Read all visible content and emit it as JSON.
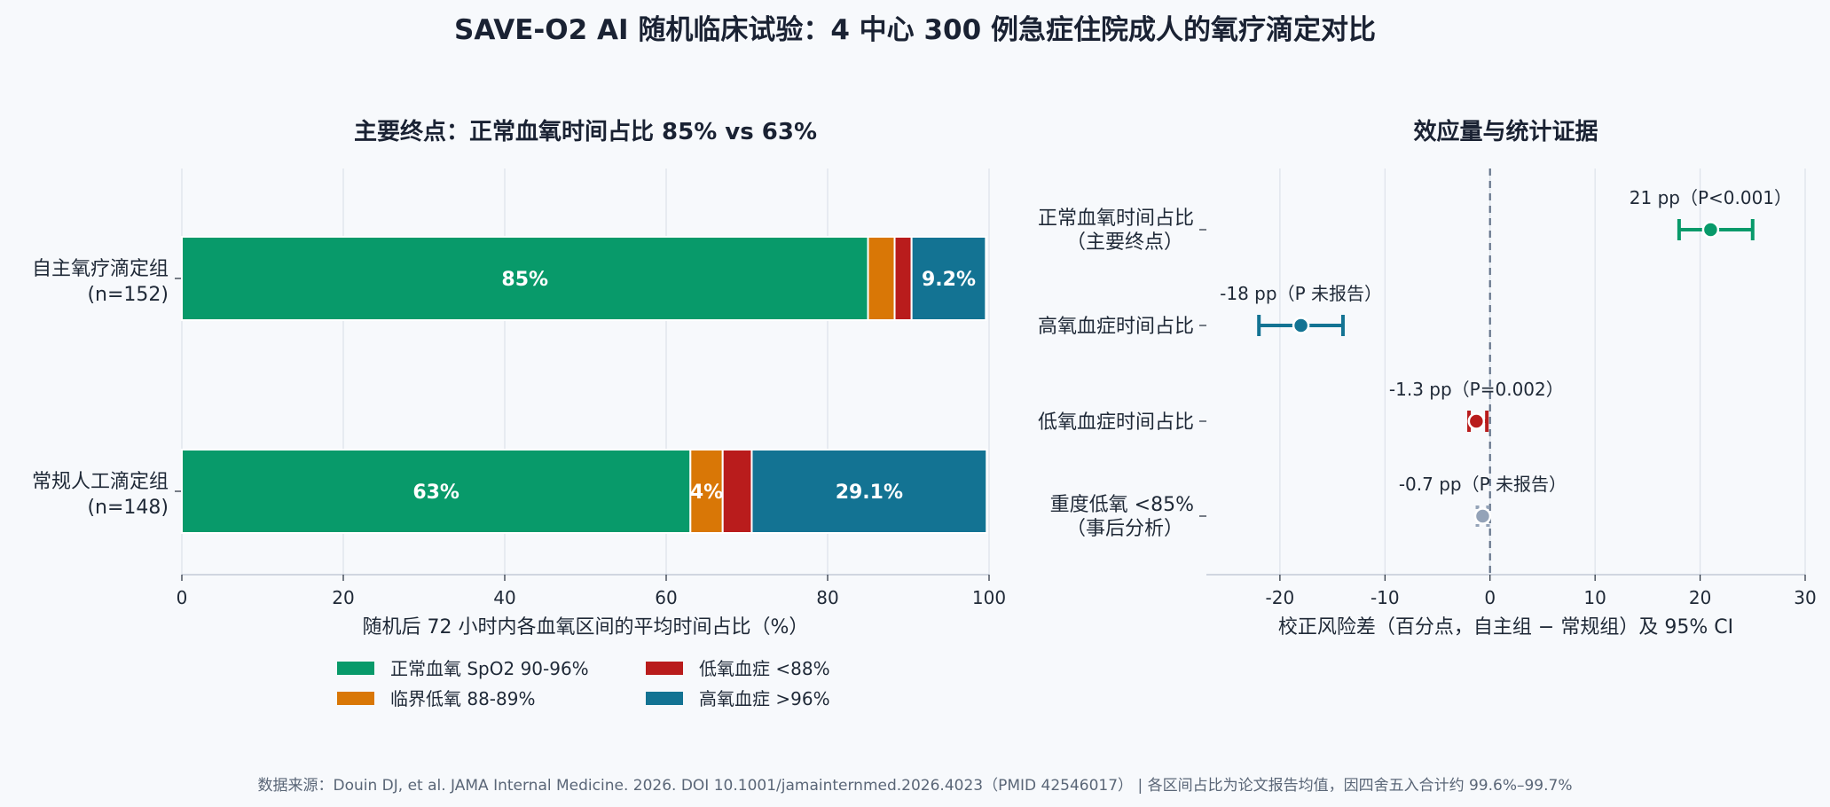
{
  "title": "SAVE-O2 AI 随机临床试验：4 中心 300 例急症住院成人的氧疗滴定对比",
  "chart_data": [
    {
      "type": "bar",
      "orientation": "horizontal",
      "stacked": true,
      "title": "主要终点：正常血氧时间占比 85% vs 63%",
      "categories": [
        {
          "line1": "自主氧疗滴定组",
          "line2": "(n=152)"
        },
        {
          "line1": "常规人工滴定组",
          "line2": "(n=148)"
        }
      ],
      "series": [
        {
          "name": "正常血氧 SpO2 90-96%",
          "color": "#089a6a",
          "values": [
            85,
            63
          ],
          "labels": [
            "85%",
            "63%"
          ]
        },
        {
          "name": "临界低氧 88-89%",
          "color": "#d97706",
          "values": [
            3.3,
            4
          ],
          "labels": [
            "",
            "4%"
          ]
        },
        {
          "name": "低氧血症 <88%",
          "color": "#b91c1c",
          "values": [
            2.1,
            3.6
          ],
          "labels": [
            "",
            ""
          ]
        },
        {
          "name": "高氧血症 >96%",
          "color": "#137393",
          "values": [
            9.2,
            29.1
          ],
          "labels": [
            "9.2%",
            "29.1%"
          ]
        }
      ],
      "xlabel": "随机后 72 小时内各血氧区间的平均时间占比（%）",
      "xlim": [
        0,
        100
      ],
      "xticks": [
        "0",
        "20",
        "40",
        "60",
        "80",
        "100"
      ],
      "grid": true,
      "legend": "bottom"
    },
    {
      "type": "scatter",
      "subtype": "forest",
      "title": "效应量与统计证据",
      "rows": [
        {
          "label_lines": [
            "正常血氧时间占比",
            "（主要终点）"
          ],
          "estimate": 21,
          "ci": [
            18,
            25
          ],
          "text": "21 pp（P<0.001）",
          "color": "#089a6a",
          "style": "solid"
        },
        {
          "label_lines": [
            "高氧血症时间占比"
          ],
          "estimate": -18,
          "ci": [
            -22,
            -14
          ],
          "text": "-18 pp（P 未报告）",
          "color": "#137393",
          "style": "solid"
        },
        {
          "label_lines": [
            "低氧血症时间占比"
          ],
          "estimate": -1.3,
          "ci": [
            -2,
            -0.3
          ],
          "text": "-1.3 pp（P=0.002）",
          "color": "#b91c1c",
          "style": "solid"
        },
        {
          "label_lines": [
            "重度低氧 <85%",
            "（事后分析）"
          ],
          "estimate": -0.7,
          "ci": [
            -1.2,
            -0.2
          ],
          "text": "-0.7 pp（P 未报告）",
          "color": "#94a3b8",
          "style": "dashed"
        }
      ],
      "xlabel": "校正风险差（百分点，自主组 − 常规组）及 95% CI",
      "xlim": [
        -27,
        30
      ],
      "xticks": [
        "-20",
        "-10",
        "0",
        "10",
        "20",
        "30"
      ],
      "reference_line": 0,
      "grid": true
    }
  ],
  "source": "数据来源：Douin DJ, et al. JAMA Internal Medicine. 2026. DOI 10.1001/jamainternmed.2026.4023（PMID 42546017） | 各区间占比为论文报告均值，因四舍五入合计约 99.6%–99.7%"
}
